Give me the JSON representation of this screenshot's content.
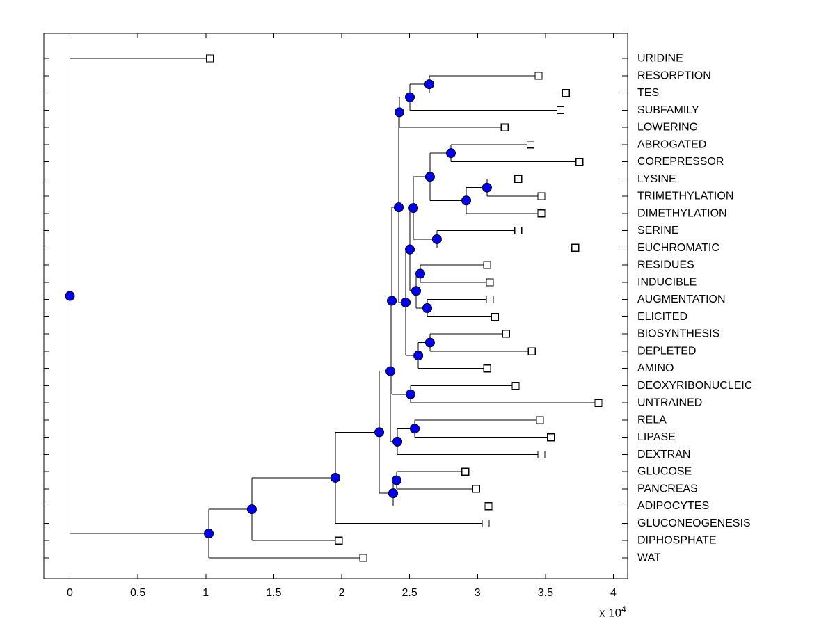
{
  "figure": {
    "background": "#ffffff"
  },
  "chart_data": {
    "type": "dendrogram",
    "title": "",
    "orientation": "left-to-right",
    "x_axis": {
      "label": "",
      "scale_label": "x 10",
      "scale_exponent": "4",
      "tick_labels": [
        "0",
        "0.5",
        "1",
        "1.5",
        "2",
        "2.5",
        "3",
        "3.5",
        "4"
      ],
      "tick_values": [
        0,
        0.5,
        1,
        1.5,
        2,
        2.5,
        3,
        3.5,
        4
      ],
      "range": [
        -0.19,
        4.11
      ],
      "units": "x 10^4"
    },
    "leaves": [
      {
        "label": "URIDINE",
        "tip": 1.03
      },
      {
        "label": "RESORPTION",
        "tip": 3.45
      },
      {
        "label": "TES",
        "tip": 3.65
      },
      {
        "label": "SUBFAMILY",
        "tip": 3.61
      },
      {
        "label": "LOWERING",
        "tip": 3.2
      },
      {
        "label": "ABROGATED",
        "tip": 3.39
      },
      {
        "label": "COREPRESSOR",
        "tip": 3.75
      },
      {
        "label": "LYSINE",
        "tip": 3.3
      },
      {
        "label": "TRIMETHYLATION",
        "tip": 3.47
      },
      {
        "label": "DIMETHYLATION",
        "tip": 3.47
      },
      {
        "label": "SERINE",
        "tip": 3.3
      },
      {
        "label": "EUCHROMATIC",
        "tip": 3.72
      },
      {
        "label": "RESIDUES",
        "tip": 3.07
      },
      {
        "label": "INDUCIBLE",
        "tip": 3.09
      },
      {
        "label": "AUGMENTATION",
        "tip": 3.09
      },
      {
        "label": "ELICITED",
        "tip": 3.13
      },
      {
        "label": "BIOSYNTHESIS",
        "tip": 3.21
      },
      {
        "label": "DEPLETED",
        "tip": 3.4
      },
      {
        "label": "AMINO",
        "tip": 3.07
      },
      {
        "label": "DEOXYRIBONUCLEIC",
        "tip": 3.28
      },
      {
        "label": "UNTRAINED",
        "tip": 3.89
      },
      {
        "label": "RELA",
        "tip": 3.46
      },
      {
        "label": "LIPASE",
        "tip": 3.54
      },
      {
        "label": "DEXTRAN",
        "tip": 3.47
      },
      {
        "label": "GLUCOSE",
        "tip": 2.91
      },
      {
        "label": "PANCREAS",
        "tip": 2.99
      },
      {
        "label": "ADIPOCYTES",
        "tip": 3.08
      },
      {
        "label": "GLUCONEOGENESIS",
        "tip": 3.06
      },
      {
        "label": "DIPHOSPHATE",
        "tip": 1.98
      },
      {
        "label": "WAT",
        "tip": 2.16
      }
    ],
    "tree": {
      "x": 0.0,
      "c": [
        {
          "leaf": 0
        },
        {
          "x": 1.022,
          "c": [
            {
              "x": 1.339,
              "c": [
                {
                  "x": 1.954,
                  "c": [
                    {
                      "x": 2.277,
                      "c": [
                        {
                          "x": 2.359,
                          "c": [
                            {
                              "x": 2.369,
                              "c": [
                                {
                                  "x": 2.42,
                                  "c": [
                                    {
                                      "x": 2.425,
                                      "c": [
                                        {
                                          "x": 2.502,
                                          "c": [
                                            {
                                              "x": 2.645,
                                              "c": [
                                                {
                                                  "leaf": 1
                                                },
                                                {
                                                  "leaf": 2
                                                }
                                              ]
                                            },
                                            {
                                              "leaf": 3
                                            }
                                          ]
                                        },
                                        {
                                          "leaf": 4
                                        }
                                      ]
                                    },
                                    {
                                      "x": 2.471,
                                      "c": [
                                        {
                                          "x": 2.502,
                                          "c": [
                                            {
                                              "x": 2.528,
                                              "c": [
                                                {
                                                  "x": 2.65,
                                                  "c": [
                                                    {
                                                      "x": 2.804,
                                                      "c": [
                                                        {
                                                          "leaf": 5
                                                        },
                                                        {
                                                          "leaf": 6
                                                        }
                                                      ]
                                                    },
                                                    {
                                                      "x": 2.917,
                                                      "c": [
                                                        {
                                                          "x": 3.07,
                                                          "c": [
                                                            {
                                                              "leaf": 7
                                                            },
                                                            {
                                                              "leaf": 8
                                                            }
                                                          ]
                                                        },
                                                        {
                                                          "leaf": 9
                                                        }
                                                      ]
                                                    }
                                                  ]
                                                },
                                                {
                                                  "x": 2.701,
                                                  "c": [
                                                    {
                                                      "leaf": 10
                                                    },
                                                    {
                                                      "leaf": 11
                                                    }
                                                  ]
                                                }
                                              ]
                                            },
                                            {
                                              "x": 2.548,
                                              "c": [
                                                {
                                                  "x": 2.579,
                                                  "c": [
                                                    {
                                                      "leaf": 12
                                                    },
                                                    {
                                                      "leaf": 13
                                                    }
                                                  ]
                                                },
                                                {
                                                  "x": 2.63,
                                                  "c": [
                                                    {
                                                      "leaf": 14
                                                    },
                                                    {
                                                      "leaf": 15
                                                    }
                                                  ]
                                                }
                                              ]
                                            }
                                          ]
                                        },
                                        {
                                          "x": 2.564,
                                          "c": [
                                            {
                                              "x": 2.65,
                                              "c": [
                                                {
                                                  "leaf": 16
                                                },
                                                {
                                                  "leaf": 17
                                                }
                                              ]
                                            },
                                            {
                                              "leaf": 18
                                            }
                                          ]
                                        }
                                      ]
                                    }
                                  ]
                                },
                                {
                                  "x": 2.507,
                                  "c": [
                                    {
                                      "leaf": 19
                                    },
                                    {
                                      "leaf": 20
                                    }
                                  ]
                                }
                              ]
                            },
                            {
                              "x": 2.41,
                              "c": [
                                {
                                  "x": 2.538,
                                  "c": [
                                    {
                                      "leaf": 21
                                    },
                                    {
                                      "leaf": 22
                                    }
                                  ]
                                },
                                {
                                  "leaf": 23
                                }
                              ]
                            }
                          ]
                        },
                        {
                          "x": 2.379,
                          "c": [
                            {
                              "x": 2.404,
                              "c": [
                                {
                                  "leaf": 24
                                },
                                {
                                  "leaf": 25
                                }
                              ]
                            },
                            {
                              "leaf": 26
                            }
                          ]
                        }
                      ]
                    },
                    {
                      "leaf": 27
                    }
                  ]
                },
                {
                  "leaf": 28
                }
              ]
            },
            {
              "leaf": 29
            }
          ]
        }
      ]
    },
    "styles": {
      "line_color": "#000000",
      "node_dot_fill": "#0000f0",
      "node_dot_edge": "#000000",
      "leaf_marker_fill": "#ffffff",
      "leaf_marker_edge": "#000000",
      "label_color": "#000000",
      "background": "#ffffff"
    }
  }
}
